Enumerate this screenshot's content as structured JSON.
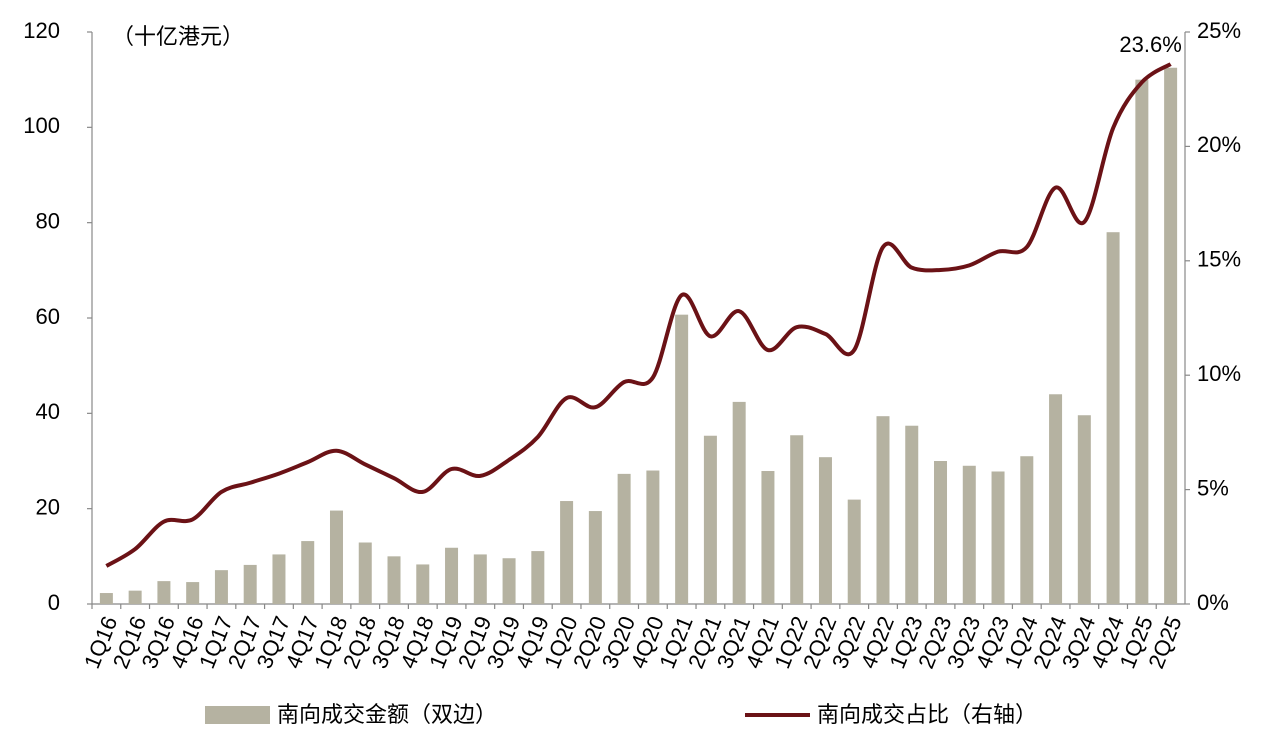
{
  "chart_data": {
    "type": "bar-line",
    "unit_label": "（十亿港元）",
    "categories": [
      "1Q16",
      "2Q16",
      "3Q16",
      "4Q16",
      "1Q17",
      "2Q17",
      "3Q17",
      "4Q17",
      "1Q18",
      "2Q18",
      "3Q18",
      "4Q18",
      "1Q19",
      "2Q19",
      "3Q19",
      "4Q19",
      "1Q20",
      "2Q20",
      "3Q20",
      "4Q20",
      "1Q21",
      "2Q21",
      "3Q21",
      "4Q21",
      "1Q22",
      "2Q22",
      "3Q22",
      "4Q22",
      "1Q23",
      "2Q23",
      "3Q23",
      "4Q23",
      "1Q24",
      "2Q24",
      "3Q24",
      "4Q24",
      "1Q25",
      "2Q25"
    ],
    "series": [
      {
        "name": "南向成交金额（双边）",
        "type": "bar",
        "color": "#b5b2a1",
        "values": [
          2.3,
          2.8,
          4.8,
          4.6,
          7.1,
          8.2,
          10.4,
          13.2,
          19.6,
          12.9,
          10.0,
          8.3,
          11.8,
          10.4,
          9.6,
          11.1,
          21.6,
          19.5,
          27.3,
          28.0,
          60.7,
          35.3,
          42.4,
          27.9,
          35.4,
          30.8,
          21.9,
          39.4,
          37.4,
          30.0,
          29.0,
          27.8,
          31.0,
          44.0,
          39.6,
          78.0,
          110.0,
          112.5
        ]
      },
      {
        "name": "南向成交占比（右轴）",
        "type": "line",
        "axis": "y2",
        "color": "#6b1216",
        "values": [
          1.66,
          2.4,
          3.6,
          3.7,
          4.9,
          5.3,
          5.7,
          6.2,
          6.7,
          6.1,
          5.5,
          4.9,
          5.9,
          5.6,
          6.3,
          7.3,
          9.0,
          8.6,
          9.7,
          9.9,
          13.5,
          11.7,
          12.8,
          11.1,
          12.1,
          11.8,
          11.1,
          15.6,
          14.7,
          14.6,
          14.8,
          15.4,
          15.6,
          18.2,
          16.7,
          20.8,
          22.8,
          23.6
        ],
        "value_labels": [
          null,
          null,
          null,
          null,
          null,
          null,
          null,
          null,
          null,
          null,
          null,
          null,
          null,
          null,
          null,
          null,
          null,
          null,
          null,
          null,
          null,
          null,
          null,
          null,
          null,
          null,
          null,
          null,
          null,
          null,
          null,
          null,
          null,
          null,
          null,
          null,
          null,
          "23.6%"
        ]
      }
    ],
    "ylim": [
      0,
      120
    ],
    "yticks": [
      0,
      20,
      40,
      60,
      80,
      100,
      120
    ],
    "y2lim": [
      0,
      25
    ],
    "y2ticks": [
      {
        "value": 0,
        "label": "0%"
      },
      {
        "value": 5,
        "label": "5%"
      },
      {
        "value": 10,
        "label": "10%"
      },
      {
        "value": 15,
        "label": "15%"
      },
      {
        "value": 20,
        "label": "20%"
      },
      {
        "value": 25,
        "label": "25%"
      }
    ],
    "grid": false
  }
}
